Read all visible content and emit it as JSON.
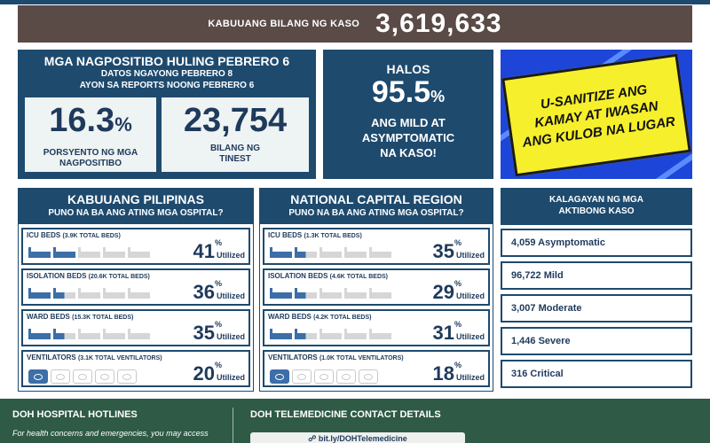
{
  "header": {
    "total_label": "KABUUANG BILANG NG KASO",
    "total_value": "3,619,633"
  },
  "positivity": {
    "title": "MGA NAGPOSITIBO HULING PEBRERO 6",
    "sub1": "DATOS NGAYONG PEBRERO 8",
    "sub2": "AYON SA REPORTS NOONG PEBRERO 6",
    "rate_value": "16.3",
    "rate_unit": "%",
    "rate_label_1": "PORSYENTO NG MGA",
    "rate_label_2": "NAGPOSITIBO",
    "tested_value": "23,754",
    "tested_label_1": "BILANG NG",
    "tested_label_2": "TINEST"
  },
  "mild": {
    "halos": "HALOS",
    "value": "95.5",
    "unit": "%",
    "desc_1": "ANG MILD AT",
    "desc_2": "ASYMPTOMATIC",
    "desc_3": "NA KASO!"
  },
  "promo": {
    "line1": "U-SANITIZE ANG",
    "line2": "KAMAY AT IWASAN",
    "line3": "ANG KULOB NA LUGAR"
  },
  "philippines": {
    "title": "KABUUANG PILIPINAS",
    "subtitle": "PUNO NA BA ANG ATING MGA OSPITAL?",
    "rows": [
      {
        "label": "ICU BEDS",
        "total": "(3.9K TOTAL BEDS)",
        "value": "41",
        "fill": 0.41
      },
      {
        "label": "ISOLATION BEDS",
        "total": "(20.6K TOTAL BEDS)",
        "value": "36",
        "fill": 0.36
      },
      {
        "label": "WARD BEDS",
        "total": "(15.3K TOTAL BEDS)",
        "value": "35",
        "fill": 0.35
      },
      {
        "label": "VENTILATORS",
        "total": "(3.1K TOTAL VENTILATORS)",
        "value": "20",
        "fill": 0.2
      }
    ]
  },
  "ncr": {
    "title": "NATIONAL CAPITAL REGION",
    "subtitle": "PUNO NA BA ANG ATING MGA OSPITAL?",
    "rows": [
      {
        "label": "ICU BEDS",
        "total": "(1.3K TOTAL BEDS)",
        "value": "35",
        "fill": 0.35
      },
      {
        "label": "ISOLATION BEDS",
        "total": "(4.6K TOTAL BEDS)",
        "value": "29",
        "fill": 0.29
      },
      {
        "label": "WARD BEDS",
        "total": "(4.2K TOTAL BEDS)",
        "value": "31",
        "fill": 0.31
      },
      {
        "label": "VENTILATORS",
        "total": "(1.0K TOTAL VENTILATORS)",
        "value": "18",
        "fill": 0.18
      }
    ]
  },
  "units": {
    "percent": "%",
    "utilized": "Utilized"
  },
  "active": {
    "title_1": "KALAGAYAN NG MGA",
    "title_2": "AKTIBONG KASO",
    "items": [
      "4,059 Asymptomatic",
      "96,722 Mild",
      "3,007 Moderate",
      "1,446 Severe",
      "316 Critical"
    ]
  },
  "footer": {
    "hotlines_title": "DOH HOSPITAL HOTLINES",
    "hotlines_text": "For health concerns and emergencies, you may access",
    "telemed_title": "DOH TELEMEDICINE CONTACT DETAILS",
    "telemed_link": "bit.ly/DOHTelemedicine"
  },
  "colors": {
    "navy": "#1e4a6e",
    "brown": "#5a4b47",
    "green": "#2e5a46",
    "promo_blue": "#1d46d8",
    "promo_yellow": "#f6ef2b"
  }
}
